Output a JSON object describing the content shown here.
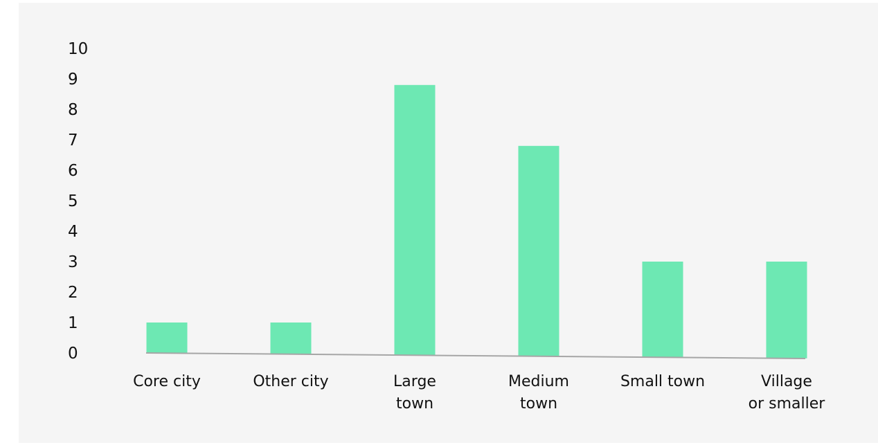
{
  "chart_data": {
    "type": "bar",
    "categories": [
      [
        "Core city"
      ],
      [
        "Other city"
      ],
      [
        "Large",
        "town"
      ],
      [
        "Medium",
        "town"
      ],
      [
        "Small town"
      ],
      [
        "Village",
        "or smaller"
      ]
    ],
    "values": [
      1,
      1,
      8.8,
      6.8,
      3,
      3
    ],
    "ylim": [
      0,
      10
    ],
    "yticks": [
      "0",
      "1",
      "2",
      "3",
      "4",
      "5",
      "6",
      "7",
      "8",
      "9",
      "10"
    ],
    "title": "",
    "xlabel": "",
    "ylabel": "",
    "grid": false,
    "legend": "none",
    "colors": {
      "bar": "#6de8b3",
      "axis": "#a6a6a6",
      "text": "#111111",
      "background": "#f5f5f5"
    }
  }
}
